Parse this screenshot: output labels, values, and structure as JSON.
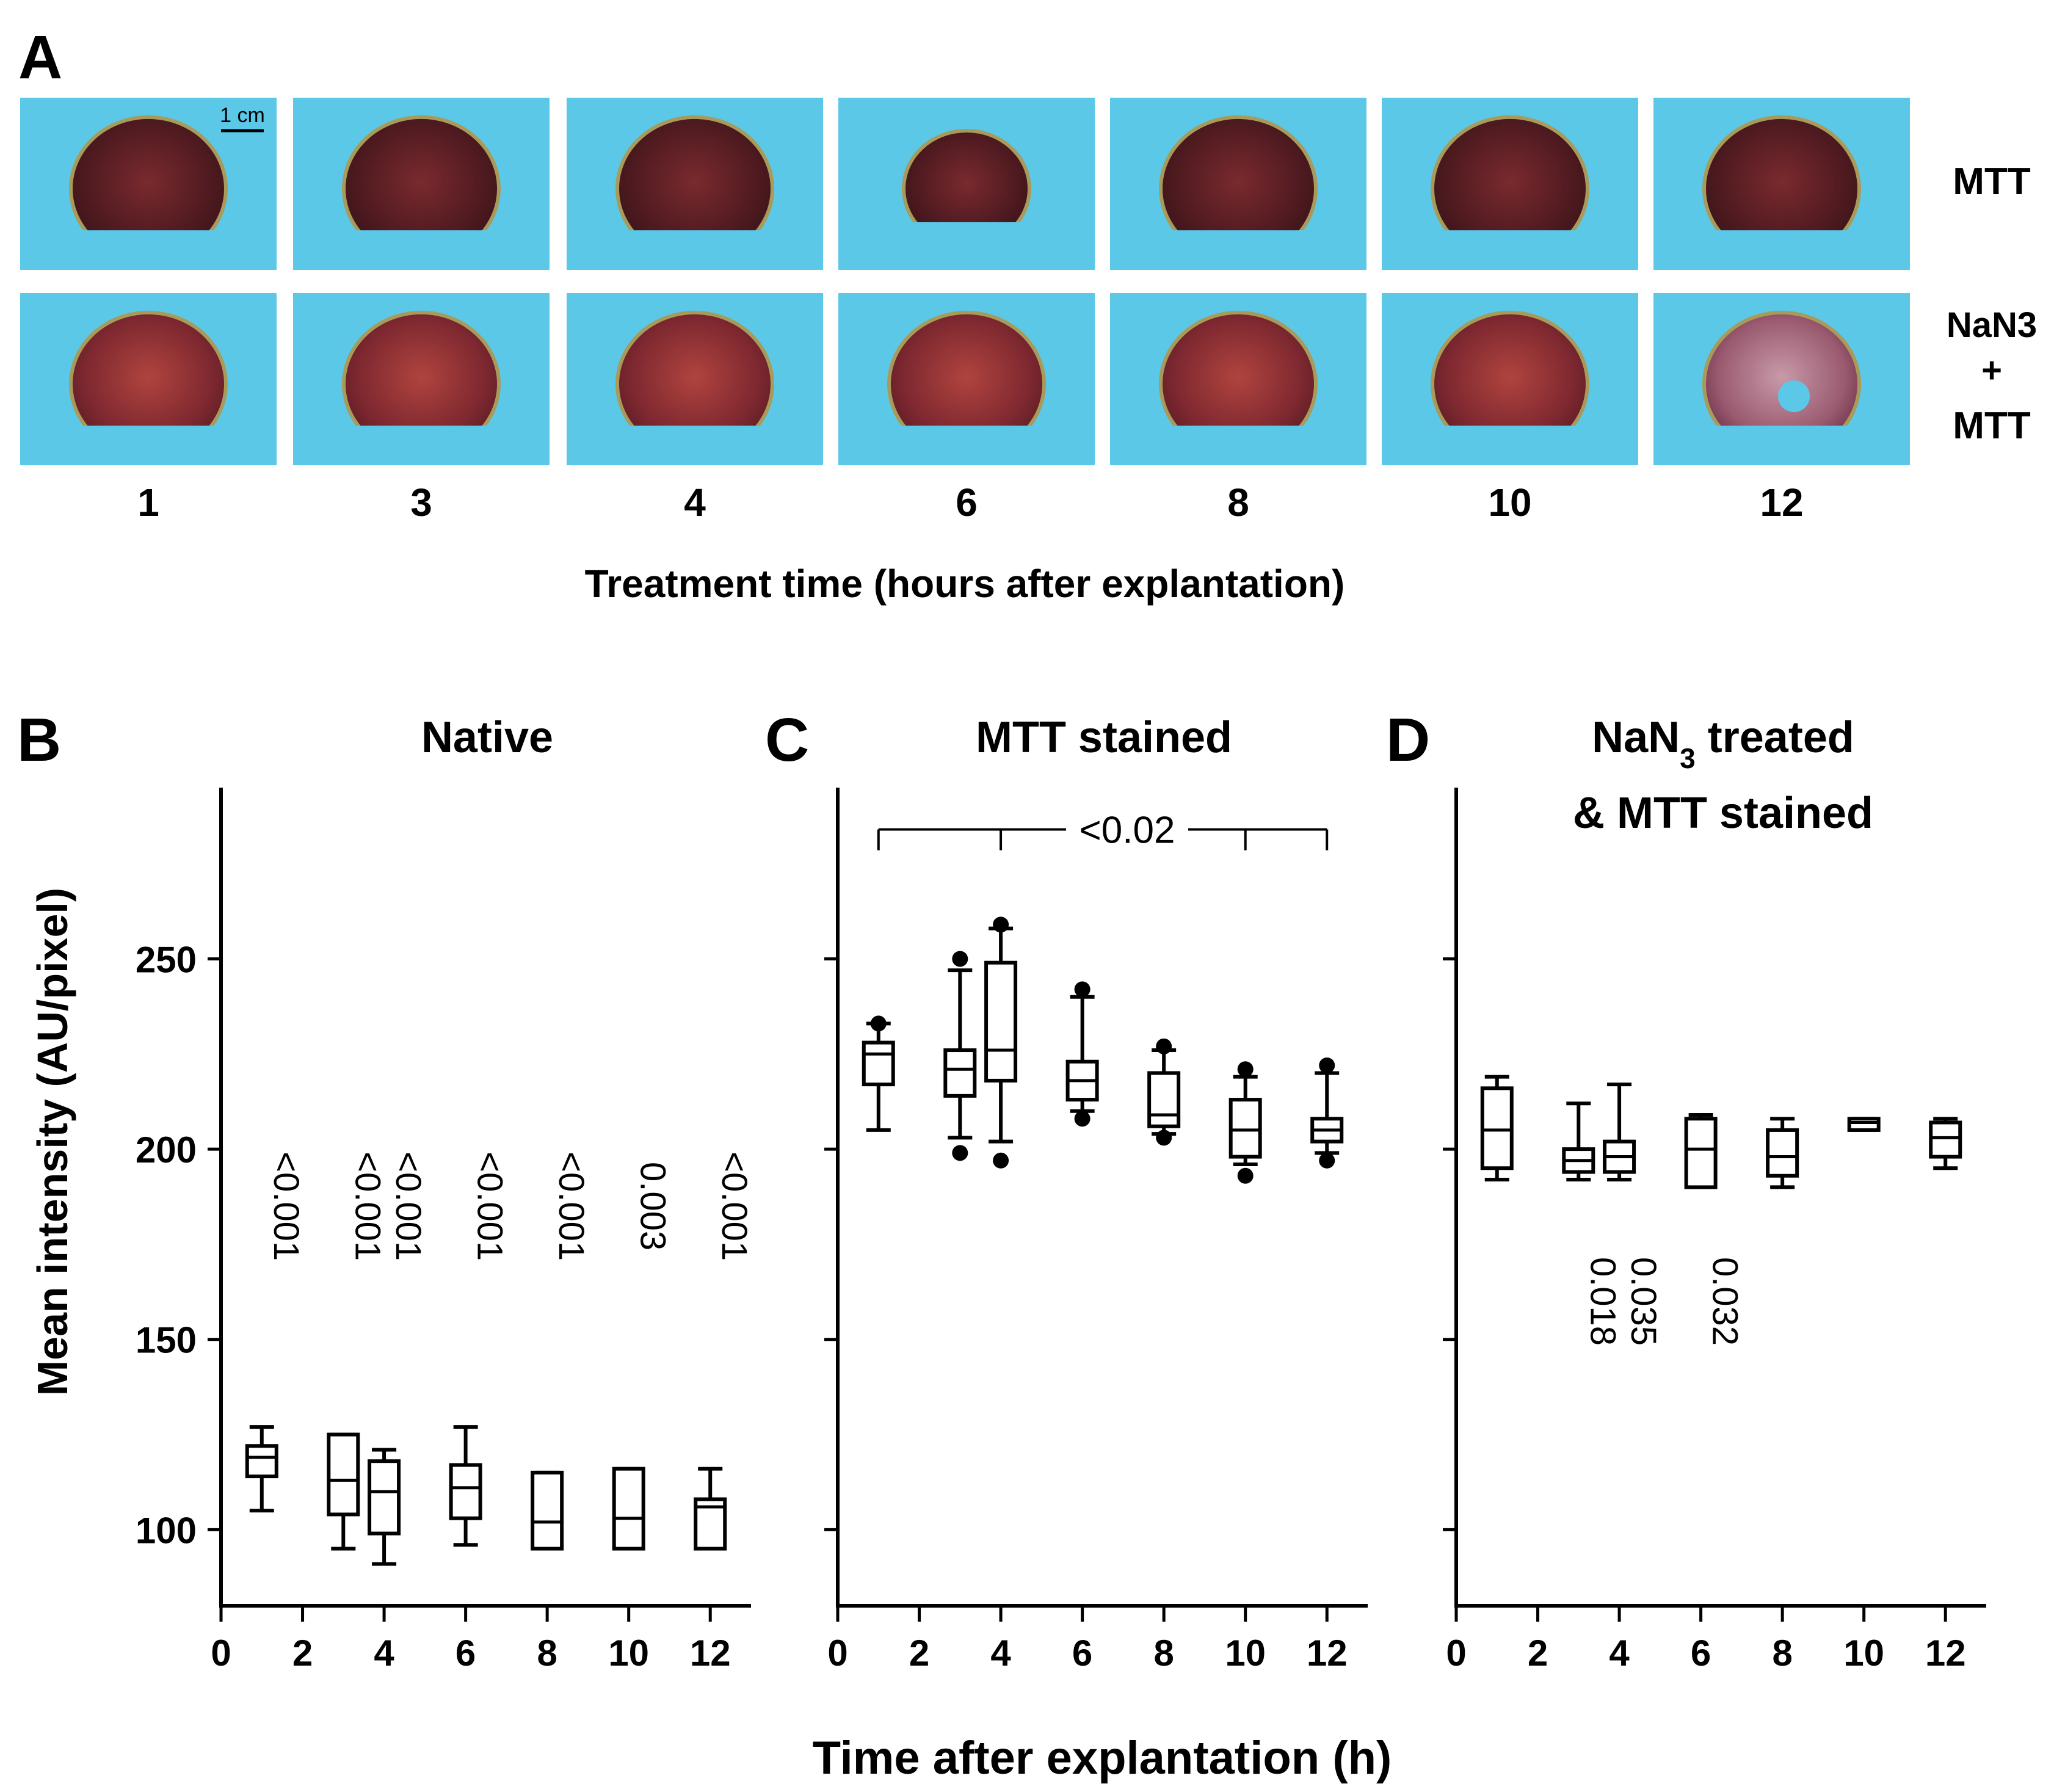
{
  "panel_a": {
    "letter": "A",
    "scale_bar_label": "1 cm",
    "row_labels": {
      "mtt": "MTT",
      "nan3_line1": "NaN3",
      "nan3_plus": "+",
      "nan3_line3": "MTT"
    },
    "time_labels": [
      "1",
      "3",
      "4",
      "6",
      "8",
      "10",
      "12"
    ],
    "axis_title": "Treatment time (hours after explantation)",
    "colors": {
      "background": "#5cc8e8",
      "tissue_mtt": "#5a1e22",
      "tissue_nan3": "#8a2a30",
      "rim": "#a89a5a"
    }
  },
  "common": {
    "ylabel": "Mean intensity (AU/pixel)",
    "xlabel": "Time after explantation (h)",
    "ylim": [
      80,
      295
    ],
    "yticks": [
      100,
      150,
      200,
      250
    ],
    "xlim": [
      0,
      13
    ],
    "xticks": [
      0,
      2,
      4,
      6,
      8,
      10,
      12
    ]
  },
  "chart_data": [
    {
      "type": "box",
      "letter": "B",
      "title": "Native",
      "xlabel": "Time after explantation (h)",
      "ylabel": "Mean intensity (AU/pixel)",
      "boxes": [
        {
          "x": 1,
          "min": 105,
          "q1": 114,
          "median": 119,
          "q3": 122,
          "max": 127,
          "outliers": []
        },
        {
          "x": 3,
          "min": 95,
          "q1": 104,
          "median": 113,
          "q3": 125,
          "max": 125,
          "outliers": []
        },
        {
          "x": 4,
          "min": 91,
          "q1": 99,
          "median": 110,
          "q3": 118,
          "max": 121,
          "outliers": []
        },
        {
          "x": 6,
          "min": 96,
          "q1": 103,
          "median": 111,
          "q3": 117,
          "max": 127,
          "outliers": []
        },
        {
          "x": 8,
          "min": 95,
          "q1": 95,
          "median": 102,
          "q3": 115,
          "max": 115,
          "outliers": []
        },
        {
          "x": 10,
          "min": 95,
          "q1": 95,
          "median": 103,
          "q3": 116,
          "max": 116,
          "outliers": []
        },
        {
          "x": 12,
          "min": 95,
          "q1": 95,
          "median": 106,
          "q3": 108,
          "max": 116,
          "outliers": []
        }
      ],
      "annotations": [
        {
          "x": 1,
          "text": "<0.001"
        },
        {
          "x": 3,
          "text": "<0.001"
        },
        {
          "x": 4,
          "text": "<0.001"
        },
        {
          "x": 6,
          "text": "<0.001"
        },
        {
          "x": 8,
          "text": "<0.001"
        },
        {
          "x": 10,
          "text": "0.003"
        },
        {
          "x": 12,
          "text": "<0.001"
        }
      ]
    },
    {
      "type": "box",
      "letter": "C",
      "title": "MTT stained",
      "xlabel": "Time after explantation (h)",
      "ylabel": "Mean intensity (AU/pixel)",
      "boxes": [
        {
          "x": 1,
          "min": 205,
          "q1": 217,
          "median": 225,
          "q3": 228,
          "max": 233,
          "outliers": [
            233
          ]
        },
        {
          "x": 3,
          "min": 203,
          "q1": 214,
          "median": 221,
          "q3": 226,
          "max": 247,
          "outliers": [
            199,
            250
          ]
        },
        {
          "x": 4,
          "min": 202,
          "q1": 218,
          "median": 226,
          "q3": 249,
          "max": 258,
          "outliers": [
            197,
            259
          ]
        },
        {
          "x": 6,
          "min": 210,
          "q1": 213,
          "median": 218,
          "q3": 223,
          "max": 240,
          "outliers": [
            208,
            242
          ]
        },
        {
          "x": 8,
          "min": 204,
          "q1": 206,
          "median": 209,
          "q3": 220,
          "max": 226,
          "outliers": [
            203,
            227
          ]
        },
        {
          "x": 10,
          "min": 196,
          "q1": 198,
          "median": 205,
          "q3": 213,
          "max": 219,
          "outliers": [
            193,
            221
          ]
        },
        {
          "x": 12,
          "min": 199,
          "q1": 202,
          "median": 205,
          "q3": 208,
          "max": 220,
          "outliers": [
            197,
            222
          ]
        }
      ],
      "bracket": {
        "x_start": 1,
        "x_end": 12,
        "drops": [
          1,
          4,
          10,
          12
        ],
        "value": 284,
        "text": "<0.02"
      }
    },
    {
      "type": "box",
      "letter": "D",
      "title_line1": "NaN",
      "title_subscript": "3",
      "title_line1_rest": " treated",
      "title_line2": "& MTT stained",
      "xlabel": "Time after explantation (h)",
      "ylabel": "Mean intensity (AU/pixel)",
      "boxes": [
        {
          "x": 1,
          "min": 192,
          "q1": 195,
          "median": 205,
          "q3": 216,
          "max": 219,
          "outliers": []
        },
        {
          "x": 3,
          "min": 192,
          "q1": 194,
          "median": 197,
          "q3": 200,
          "max": 212,
          "outliers": []
        },
        {
          "x": 4,
          "min": 192,
          "q1": 194,
          "median": 198,
          "q3": 202,
          "max": 217,
          "outliers": []
        },
        {
          "x": 6,
          "min": 190,
          "q1": 190,
          "median": 200,
          "q3": 208,
          "max": 209,
          "outliers": []
        },
        {
          "x": 8,
          "min": 190,
          "q1": 193,
          "median": 198,
          "q3": 205,
          "max": 208,
          "outliers": []
        },
        {
          "x": 10,
          "min": 205,
          "q1": 205,
          "median": 207,
          "q3": 208,
          "max": 208,
          "outliers": []
        },
        {
          "x": 12,
          "min": 195,
          "q1": 198,
          "median": 203,
          "q3": 207,
          "max": 208,
          "outliers": []
        }
      ],
      "annotations": [
        {
          "x": 3,
          "text": "0.018"
        },
        {
          "x": 4,
          "text": "0.035"
        },
        {
          "x": 6,
          "text": "0.032"
        }
      ]
    }
  ]
}
